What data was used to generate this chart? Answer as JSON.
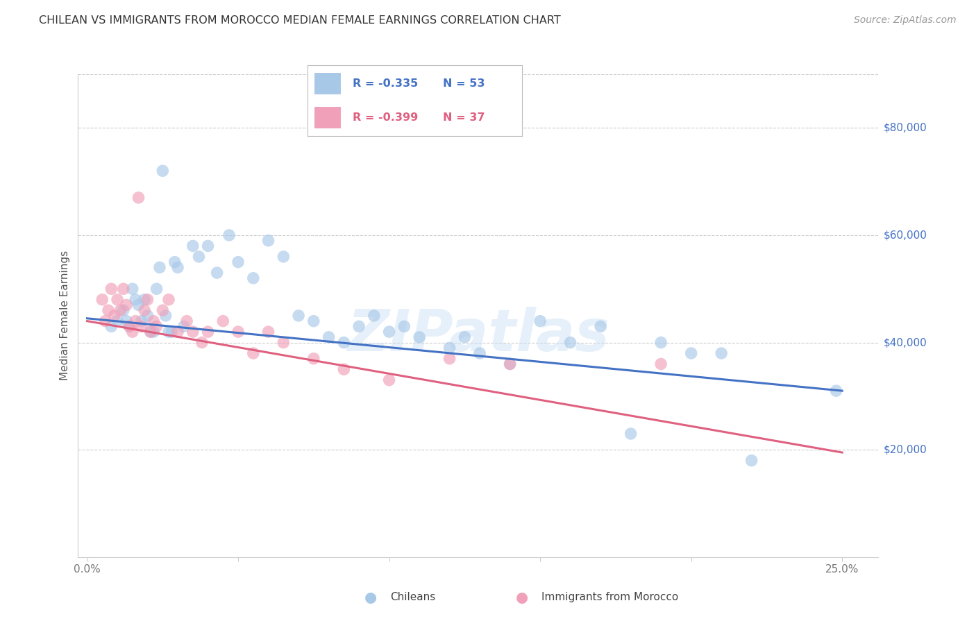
{
  "title": "CHILEAN VS IMMIGRANTS FROM MOROCCO MEDIAN FEMALE EARNINGS CORRELATION CHART",
  "source": "Source: ZipAtlas.com",
  "ylabel": "Median Female Earnings",
  "xlabel_ticks": [
    0.0,
    0.05,
    0.1,
    0.15,
    0.2,
    0.25
  ],
  "xlabel_labels": [
    "0.0%",
    "",
    "",
    "",
    "",
    "25.0%"
  ],
  "ytick_values": [
    0,
    20000,
    40000,
    60000,
    80000
  ],
  "ytick_labels": [
    "",
    "$20,000",
    "$40,000",
    "$60,000",
    "$80,000"
  ],
  "ylim": [
    0,
    90000
  ],
  "xlim": [
    -0.003,
    0.262
  ],
  "blue_color": "#a8c8e8",
  "pink_color": "#f0a0b8",
  "blue_line_color": "#4472c4",
  "pink_line_color": "#e06080",
  "legend_label_blue": "Chileans",
  "legend_label_pink": "Immigrants from Morocco",
  "legend_R_blue": "R = -0.335",
  "legend_N_blue": "N = 53",
  "legend_R_pink": "R = -0.399",
  "legend_N_pink": "N = 37",
  "watermark_text": "ZIPatlas",
  "blue_line_x0": 0.0,
  "blue_line_y0": 44500,
  "blue_line_x1": 0.25,
  "blue_line_y1": 31000,
  "pink_line_x0": 0.0,
  "pink_line_y0": 44000,
  "pink_line_x1": 0.25,
  "pink_line_y1": 19500,
  "blue_scatter_x": [
    0.008,
    0.01,
    0.012,
    0.013,
    0.014,
    0.015,
    0.016,
    0.017,
    0.018,
    0.019,
    0.02,
    0.021,
    0.022,
    0.023,
    0.024,
    0.025,
    0.026,
    0.027,
    0.028,
    0.029,
    0.03,
    0.032,
    0.035,
    0.037,
    0.04,
    0.043,
    0.047,
    0.05,
    0.055,
    0.06,
    0.065,
    0.07,
    0.075,
    0.08,
    0.085,
    0.09,
    0.095,
    0.1,
    0.105,
    0.11,
    0.12,
    0.125,
    0.13,
    0.14,
    0.15,
    0.16,
    0.17,
    0.18,
    0.19,
    0.2,
    0.21,
    0.22,
    0.248
  ],
  "blue_scatter_y": [
    43000,
    44000,
    46000,
    44000,
    43000,
    50000,
    48000,
    47000,
    44000,
    48000,
    45000,
    42000,
    42000,
    50000,
    54000,
    72000,
    45000,
    42000,
    42000,
    55000,
    54000,
    43000,
    58000,
    56000,
    58000,
    53000,
    60000,
    55000,
    52000,
    59000,
    56000,
    45000,
    44000,
    41000,
    40000,
    43000,
    45000,
    42000,
    43000,
    41000,
    39000,
    41000,
    38000,
    36000,
    44000,
    40000,
    43000,
    23000,
    40000,
    38000,
    38000,
    18000,
    31000
  ],
  "pink_scatter_x": [
    0.005,
    0.006,
    0.007,
    0.008,
    0.009,
    0.01,
    0.011,
    0.012,
    0.013,
    0.014,
    0.015,
    0.016,
    0.017,
    0.018,
    0.019,
    0.02,
    0.021,
    0.022,
    0.023,
    0.025,
    0.027,
    0.03,
    0.033,
    0.035,
    0.038,
    0.04,
    0.045,
    0.05,
    0.055,
    0.06,
    0.065,
    0.075,
    0.085,
    0.1,
    0.12,
    0.14,
    0.19
  ],
  "pink_scatter_y": [
    48000,
    44000,
    46000,
    50000,
    45000,
    48000,
    46000,
    50000,
    47000,
    43000,
    42000,
    44000,
    67000,
    43000,
    46000,
    48000,
    42000,
    44000,
    43000,
    46000,
    48000,
    42000,
    44000,
    42000,
    40000,
    42000,
    44000,
    42000,
    38000,
    42000,
    40000,
    37000,
    35000,
    33000,
    37000,
    36000,
    36000
  ],
  "grid_color": "#cccccc",
  "background_color": "#ffffff",
  "title_color": "#333333",
  "source_color": "#999999",
  "ylabel_color": "#555555",
  "tick_color": "#777777"
}
